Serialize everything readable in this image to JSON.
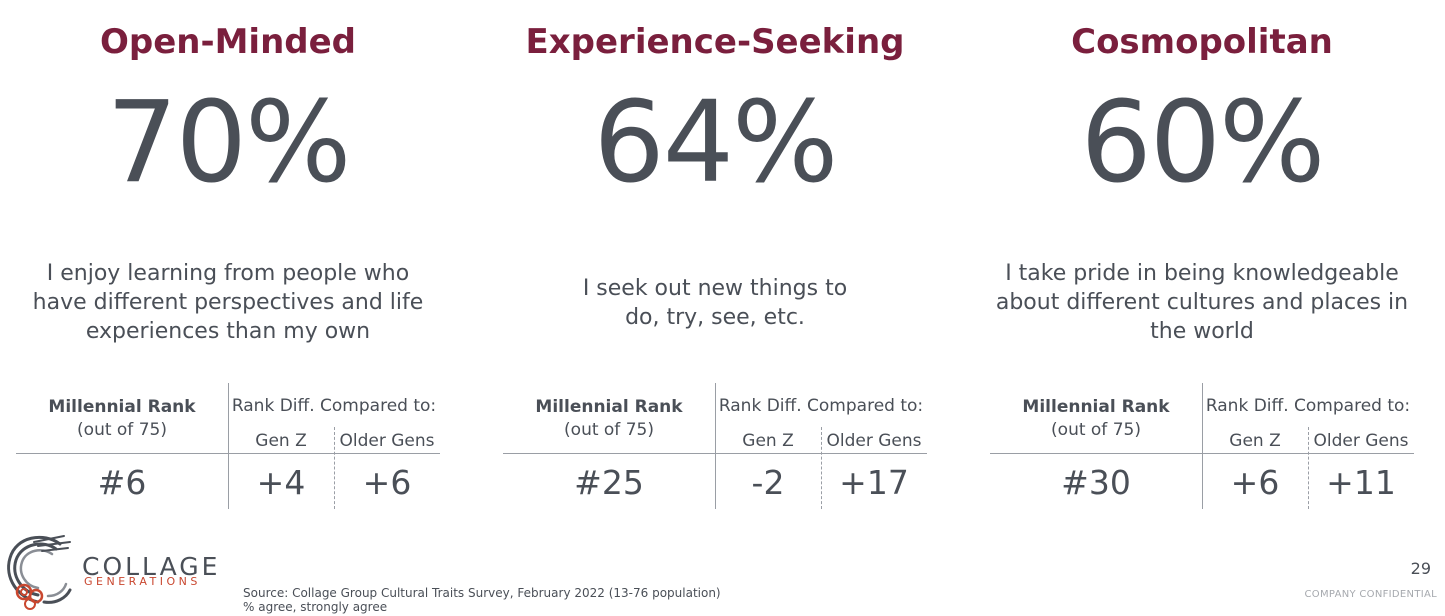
{
  "traits": [
    {
      "title": "Open-Minded",
      "percent": "70%",
      "statement_lines": [
        "I enjoy learning from people who",
        "have different perspectives and life",
        "experiences than my own"
      ],
      "rank": "#6",
      "diff_genz": "+4",
      "diff_older": "+6"
    },
    {
      "title": "Experience-Seeking",
      "percent": "64%",
      "statement_lines": [
        "I seek out new things to",
        "do, try, see, etc."
      ],
      "rank": "#25",
      "diff_genz": "-2",
      "diff_older": "+17"
    },
    {
      "title": "Cosmopolitan",
      "percent": "60%",
      "statement_lines": [
        "I take pride in being knowledgeable",
        "about different cultures and places in",
        "the world"
      ],
      "rank": "#30",
      "diff_genz": "+6",
      "diff_older": "+11"
    }
  ],
  "table_labels": {
    "rank_head": "Millennial Rank",
    "rank_sub": "(out of 75)",
    "diff_head": "Rank Diff. Compared to:",
    "genz": "Gen Z",
    "older": "Older Gens"
  },
  "logo": {
    "word": "COLLAGE",
    "sub": "GENERATIONS"
  },
  "footer": {
    "source_line1": "Source: Collage Group Cultural Traits Survey, February 2022 (13-76 population)",
    "source_line2": "% agree, strongly agree",
    "page_number": "29",
    "confidential": "COMPANY CONFIDENTIAL"
  },
  "colors": {
    "title": "#7a1f3d",
    "text": "#4a4f57",
    "logo_accent": "#c9472f"
  }
}
